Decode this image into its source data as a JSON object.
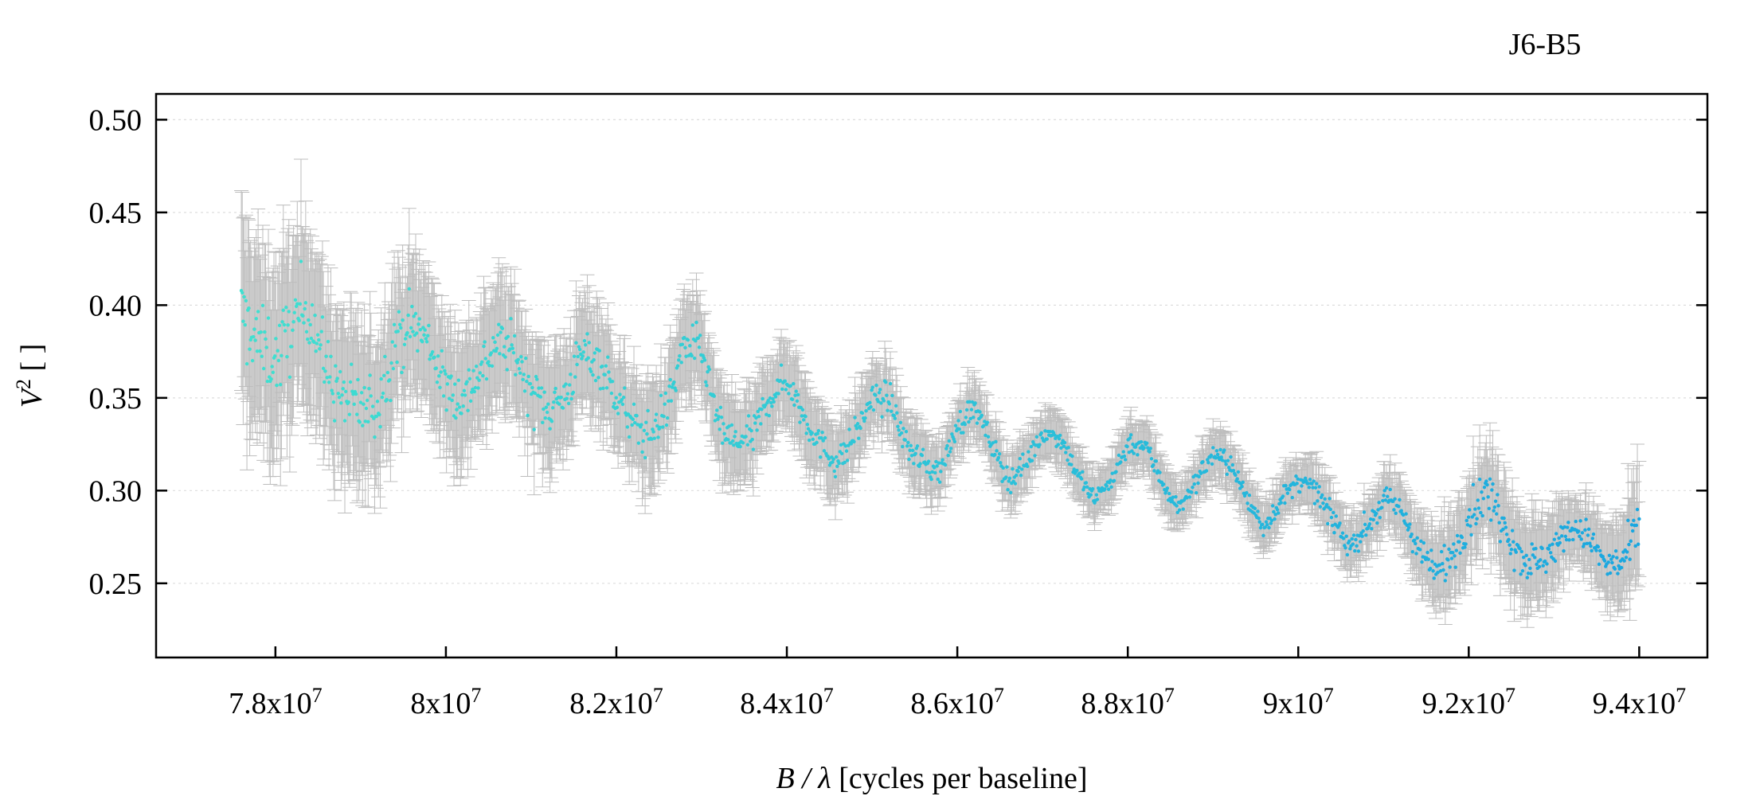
{
  "chart_data": {
    "type": "scatter",
    "title": "J6-B5",
    "xlabel": {
      "var": "B / λ",
      "rest": " [cycles per baseline]"
    },
    "ylabel": {
      "var": "V",
      "sup": "2",
      "rest": " [ ]"
    },
    "xlim": [
      76600000,
      94800000
    ],
    "ylim": [
      0.21,
      0.5139
    ],
    "x_ticks": [
      {
        "value": 78000000,
        "base": "7.8x10",
        "exp": "7"
      },
      {
        "value": 80000000,
        "base": "8x10",
        "exp": "7"
      },
      {
        "value": 82000000,
        "base": "8.2x10",
        "exp": "7"
      },
      {
        "value": 84000000,
        "base": "8.4x10",
        "exp": "7"
      },
      {
        "value": 86000000,
        "base": "8.6x10",
        "exp": "7"
      },
      {
        "value": 88000000,
        "base": "8.8x10",
        "exp": "7"
      },
      {
        "value": 90000000,
        "base": "9x10",
        "exp": "7"
      },
      {
        "value": 92000000,
        "base": "9.2x10",
        "exp": "7"
      },
      {
        "value": 94000000,
        "base": "9.4x10",
        "exp": "7"
      }
    ],
    "y_ticks": [
      {
        "value": 0.25,
        "label": "0.25"
      },
      {
        "value": 0.3,
        "label": "0.30"
      },
      {
        "value": 0.35,
        "label": "0.35"
      },
      {
        "value": 0.4,
        "label": "0.40"
      },
      {
        "value": 0.45,
        "label": "0.45"
      },
      {
        "value": 0.5,
        "label": "0.50"
      }
    ],
    "grid": {
      "y": true,
      "x": false,
      "style": "dotted"
    },
    "colors": {
      "errorbar": "#bdbdbd",
      "point_start": "#40e0d0",
      "point_end": "#1aa7e0",
      "frame": "#000000",
      "grid": "#dddddd"
    },
    "series": [
      {
        "x": [
          77600000,
          77800000,
          78000000,
          78200000,
          78400000,
          78600000,
          78800000,
          79000000,
          79200000,
          79400000,
          79600000,
          79800000,
          80000000,
          80200000,
          80400000,
          80600000,
          80800000,
          81000000,
          81200000,
          81400000,
          81600000,
          81800000,
          82000000,
          82200000,
          82400000,
          82600000,
          82800000,
          83000000,
          83200000,
          83400000,
          83600000,
          83800000,
          84000000,
          84200000,
          84400000,
          84600000,
          84800000,
          85000000,
          85200000,
          85400000,
          85600000,
          85800000,
          86000000,
          86200000,
          86400000,
          86600000,
          86800000,
          87000000,
          87200000,
          87400000,
          87600000,
          87800000,
          88000000,
          88200000,
          88400000,
          88600000,
          88800000,
          89000000,
          89200000,
          89400000,
          89600000,
          89800000,
          90000000,
          90200000,
          90400000,
          90600000,
          90800000,
          91000000,
          91200000,
          91400000,
          91600000,
          91800000,
          92000000,
          92200000,
          92400000,
          92600000,
          92800000,
          93000000,
          93200000,
          93400000,
          93600000,
          93800000,
          94000000
        ],
        "y": [
          0.395,
          0.38,
          0.37,
          0.39,
          0.4,
          0.365,
          0.35,
          0.345,
          0.345,
          0.38,
          0.39,
          0.38,
          0.355,
          0.35,
          0.365,
          0.38,
          0.375,
          0.355,
          0.345,
          0.35,
          0.375,
          0.37,
          0.35,
          0.335,
          0.33,
          0.345,
          0.38,
          0.375,
          0.335,
          0.325,
          0.33,
          0.35,
          0.36,
          0.34,
          0.325,
          0.315,
          0.33,
          0.35,
          0.35,
          0.325,
          0.315,
          0.31,
          0.335,
          0.345,
          0.325,
          0.305,
          0.315,
          0.33,
          0.33,
          0.31,
          0.295,
          0.305,
          0.325,
          0.325,
          0.305,
          0.29,
          0.305,
          0.32,
          0.315,
          0.295,
          0.28,
          0.295,
          0.305,
          0.3,
          0.285,
          0.27,
          0.28,
          0.295,
          0.29,
          0.27,
          0.255,
          0.265,
          0.285,
          0.3,
          0.285,
          0.265,
          0.26,
          0.27,
          0.28,
          0.275,
          0.26,
          0.26,
          0.28
        ],
        "err": [
          0.05,
          0.048,
          0.046,
          0.045,
          0.044,
          0.042,
          0.04,
          0.038,
          0.037,
          0.036,
          0.035,
          0.034,
          0.033,
          0.032,
          0.031,
          0.031,
          0.03,
          0.029,
          0.028,
          0.028,
          0.027,
          0.027,
          0.026,
          0.025,
          0.025,
          0.024,
          0.024,
          0.023,
          0.023,
          0.022,
          0.021,
          0.021,
          0.02,
          0.02,
          0.019,
          0.019,
          0.018,
          0.018,
          0.017,
          0.016,
          0.016,
          0.015,
          0.015,
          0.015,
          0.014,
          0.014,
          0.013,
          0.013,
          0.013,
          0.012,
          0.012,
          0.012,
          0.012,
          0.012,
          0.012,
          0.012,
          0.012,
          0.013,
          0.013,
          0.013,
          0.013,
          0.013,
          0.013,
          0.014,
          0.014,
          0.014,
          0.014,
          0.015,
          0.016,
          0.018,
          0.02,
          0.022,
          0.024,
          0.025,
          0.025,
          0.024,
          0.023,
          0.02,
          0.018,
          0.018,
          0.02,
          0.024,
          0.03
        ]
      }
    ]
  }
}
